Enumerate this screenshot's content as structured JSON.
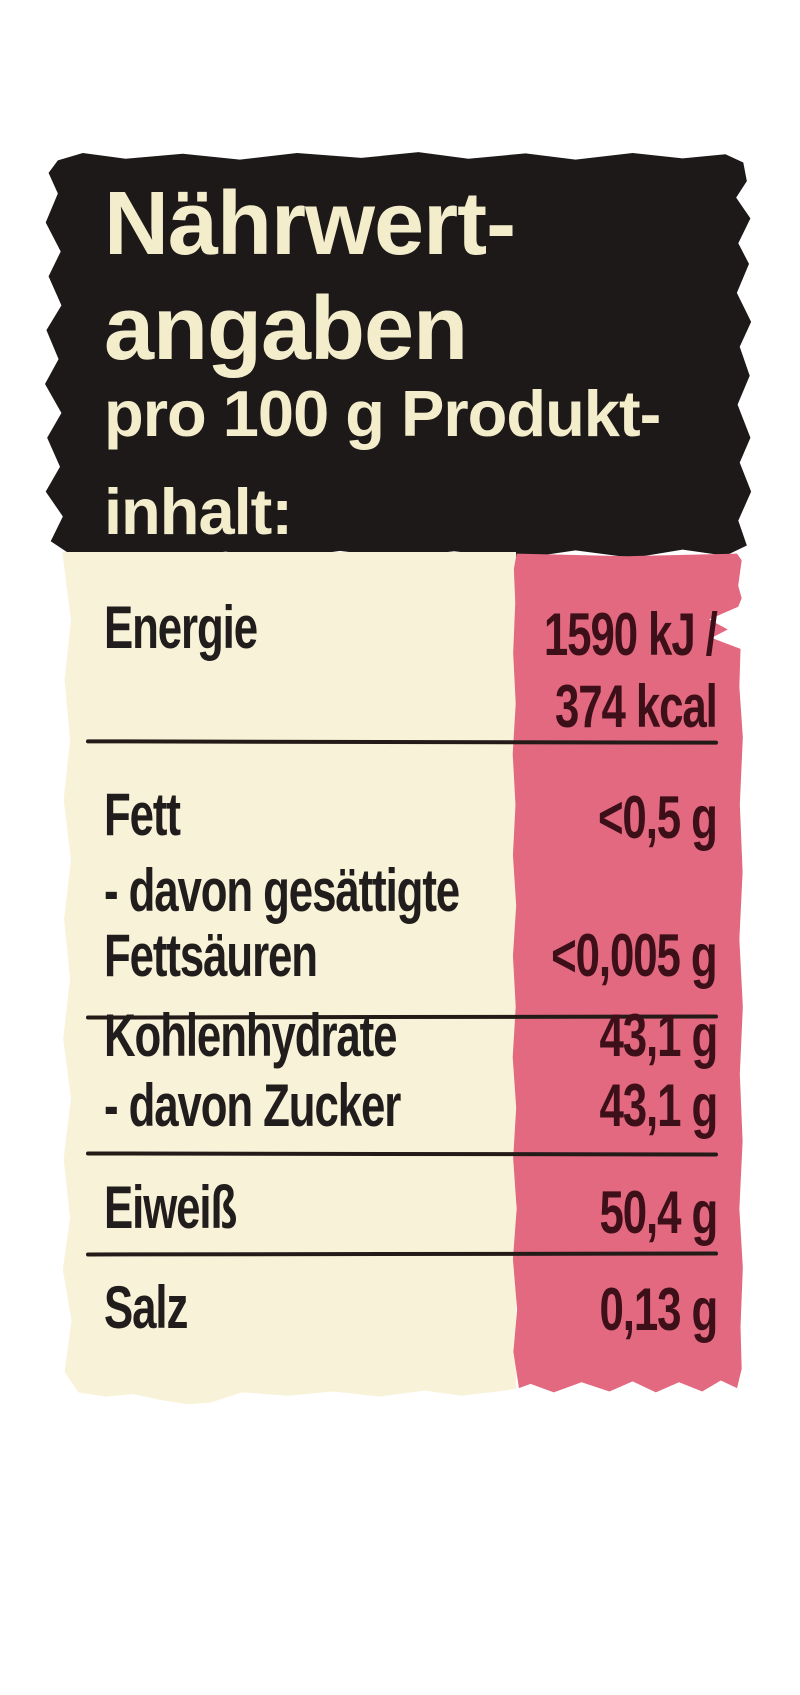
{
  "header": {
    "title_line1": "Nährwert-",
    "title_line2": "angaben",
    "subtitle_line1": "pro 100 g Produkt-",
    "subtitle_line2": "inhalt:"
  },
  "table": {
    "rows": [
      {
        "label": "Energie",
        "value_line1": "1590 kJ /",
        "value_line2": "374 kcal"
      },
      {
        "label": "Fett",
        "value": "<0,5 g"
      },
      {
        "label_line1": "- davon gesättigte",
        "label_line2": "Fettsäuren",
        "value": "<0,005 g"
      },
      {
        "label": "Kohlenhydrate",
        "value": "43,1 g"
      },
      {
        "label": "- davon Zucker",
        "value": "43,1 g"
      },
      {
        "label": "Eiweiß",
        "value": "50,4 g"
      },
      {
        "label": "Salz",
        "value": "0,13 g"
      }
    ]
  },
  "colors": {
    "page_bg": "#ffffff",
    "header_bg": "#1d1919",
    "header_text": "#f4edcc",
    "body_bg": "#f8f3d8",
    "value_col_bg": "#e2697f",
    "label_text": "#211d1d",
    "value_text": "#3d0f18",
    "divider": "#241b18"
  }
}
